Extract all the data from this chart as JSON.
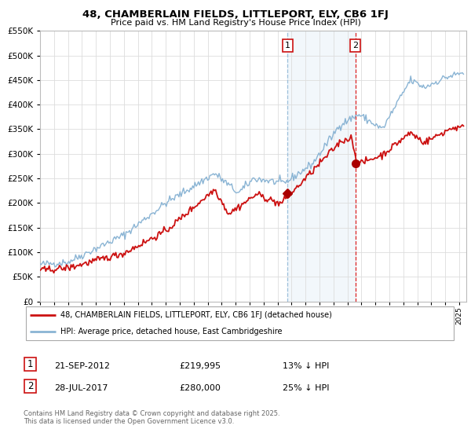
{
  "title": "48, CHAMBERLAIN FIELDS, LITTLEPORT, ELY, CB6 1FJ",
  "subtitle": "Price paid vs. HM Land Registry's House Price Index (HPI)",
  "legend_line1": "48, CHAMBERLAIN FIELDS, LITTLEPORT, ELY, CB6 1FJ (detached house)",
  "legend_line2": "HPI: Average price, detached house, East Cambridgeshire",
  "hpi_color": "#8ab4d4",
  "price_color": "#cc1111",
  "marker_color": "#aa0000",
  "vline1_color": "#8ab4d4",
  "vline2_color": "#dd2222",
  "shade_color": "#ddeeff",
  "annotation1": {
    "label": "1",
    "date_str": "21-SEP-2012",
    "price": 219995,
    "x_year": 2012.72
  },
  "annotation2": {
    "label": "2",
    "date_str": "28-JUL-2017",
    "price": 280000,
    "x_year": 2017.57
  },
  "footer": "Contains HM Land Registry data © Crown copyright and database right 2025.\nThis data is licensed under the Open Government Licence v3.0.",
  "ylim": [
    0,
    550000
  ],
  "xlim_start": 1995.0,
  "xlim_end": 2025.5,
  "background_color": "#ffffff",
  "plot_bg_color": "#ffffff",
  "grid_color": "#dddddd"
}
